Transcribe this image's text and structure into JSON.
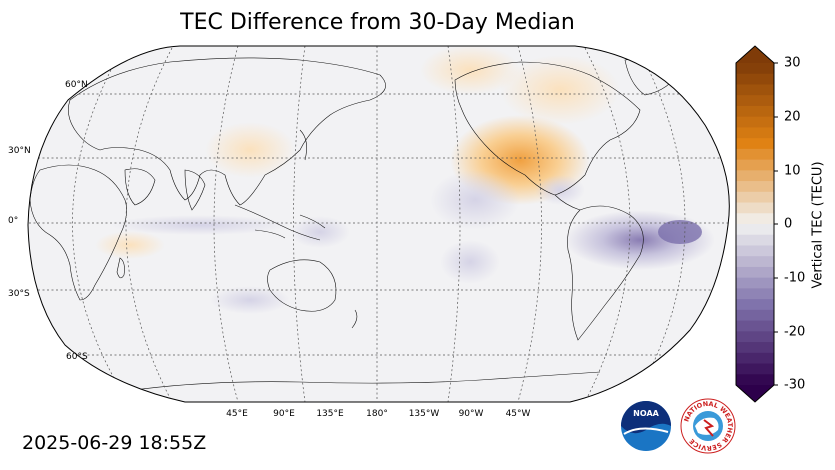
{
  "title": "TEC Difference from 30-Day Median",
  "timestamp": "2025-06-29 18:55Z",
  "colorbar": {
    "label": "Vertical TEC (TECU)",
    "ticks": [
      "30",
      "20",
      "10",
      "0",
      "-10",
      "-20",
      "-30"
    ],
    "range": [
      -30,
      30
    ]
  },
  "latitude_labels": [
    "60°N",
    "30°N",
    "0°",
    "30°S",
    "60°S"
  ],
  "longitude_labels": [
    "45°E",
    "90°E",
    "135°E",
    "180°",
    "135°W",
    "90°W",
    "45°W"
  ],
  "colors": {
    "positive_max": "#7f3b08",
    "positive_mid": "#e08214",
    "neutral": "#f2f2f2",
    "negative_mid": "#8073ac",
    "negative_max": "#2d004b"
  },
  "logos": {
    "noaa": "NOAA",
    "nws": "NATIONAL WEATHER SERVICE"
  }
}
